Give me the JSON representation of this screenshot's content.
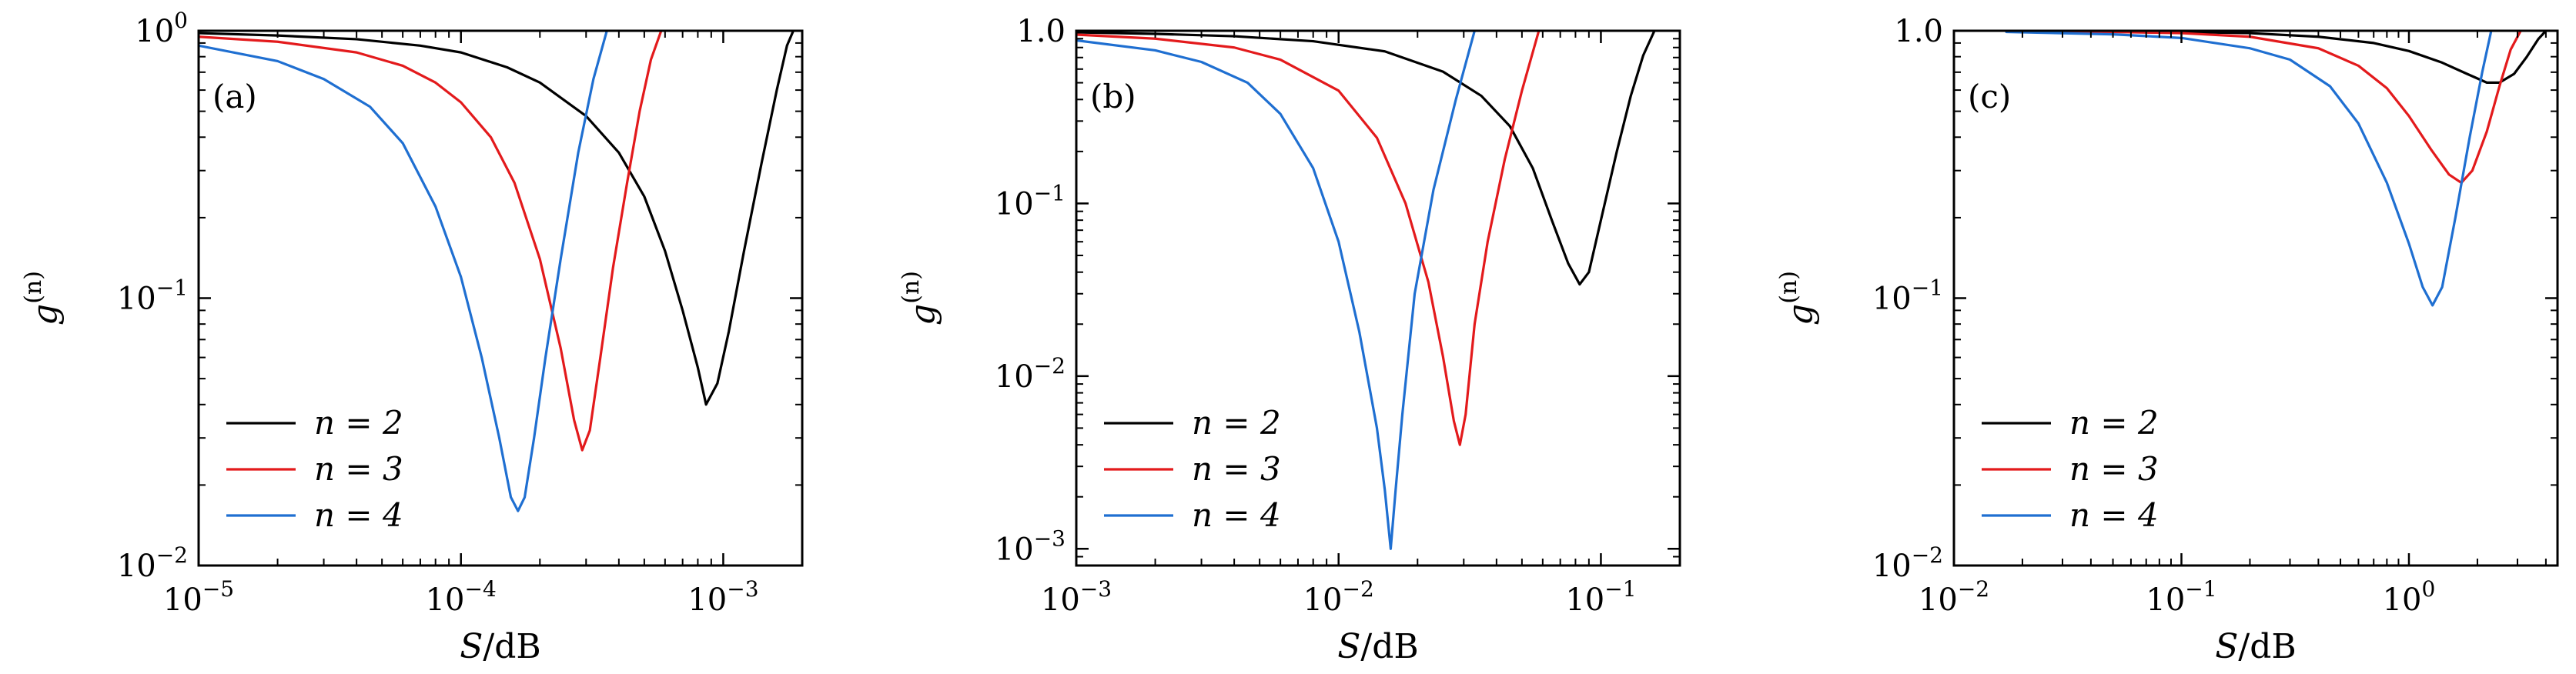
{
  "chart_data": [
    {
      "type": "line",
      "panel_label": "(a)",
      "xlabel": "S/dB",
      "ylabel": "g^(n)",
      "xscale": "log",
      "yscale": "log",
      "xlim": [
        1e-05,
        0.002
      ],
      "ylim": [
        0.01,
        1
      ],
      "xticks": [
        {
          "value": 1e-05,
          "mantissa": "10",
          "exp": "−5"
        },
        {
          "value": 0.0001,
          "mantissa": "10",
          "exp": "−4"
        },
        {
          "value": 0.001,
          "mantissa": "10",
          "exp": "−3"
        }
      ],
      "yticks": [
        {
          "value": 0.01,
          "mantissa": "10",
          "exp": "−2"
        },
        {
          "value": 0.1,
          "mantissa": "10",
          "exp": "−1"
        },
        {
          "value": 1,
          "mantissa": "10",
          "exp": "0"
        }
      ],
      "grid": false,
      "legend_position": "lower-left",
      "series": [
        {
          "name": "n = 2",
          "color": "#000000",
          "x": [
            1e-05,
            2e-05,
            4e-05,
            7e-05,
            0.0001,
            0.00015,
            0.0002,
            0.0003,
            0.0004,
            0.0005,
            0.0006,
            0.0007,
            0.0008,
            0.00086,
            0.00095,
            0.00105,
            0.0012,
            0.0014,
            0.0016,
            0.00175,
            0.00185
          ],
          "y": [
            0.98,
            0.96,
            0.93,
            0.88,
            0.83,
            0.73,
            0.64,
            0.48,
            0.35,
            0.24,
            0.15,
            0.09,
            0.055,
            0.04,
            0.048,
            0.075,
            0.15,
            0.32,
            0.6,
            0.88,
            1.0
          ]
        },
        {
          "name": "n = 3",
          "color": "#e31a1c",
          "x": [
            1e-05,
            2e-05,
            4e-05,
            6e-05,
            8e-05,
            0.0001,
            0.00013,
            0.00016,
            0.0002,
            0.00024,
            0.00027,
            0.00029,
            0.00031,
            0.00034,
            0.00038,
            0.00043,
            0.00048,
            0.00053,
            0.00058
          ],
          "y": [
            0.95,
            0.91,
            0.83,
            0.74,
            0.64,
            0.54,
            0.4,
            0.27,
            0.14,
            0.065,
            0.035,
            0.027,
            0.032,
            0.06,
            0.13,
            0.27,
            0.5,
            0.78,
            1.0
          ]
        },
        {
          "name": "n = 4",
          "color": "#1f6fd1",
          "x": [
            1e-05,
            2e-05,
            3e-05,
            4.5e-05,
            6e-05,
            8e-05,
            0.0001,
            0.00012,
            0.00014,
            0.000155,
            0.000165,
            0.000175,
            0.00019,
            0.00021,
            0.00024,
            0.00028,
            0.00032,
            0.00036
          ],
          "y": [
            0.88,
            0.77,
            0.66,
            0.52,
            0.38,
            0.22,
            0.12,
            0.06,
            0.03,
            0.018,
            0.016,
            0.018,
            0.03,
            0.06,
            0.14,
            0.35,
            0.66,
            1.0
          ]
        }
      ]
    },
    {
      "type": "line",
      "panel_label": "(b)",
      "xlabel": "S/dB",
      "ylabel": "g^(n)",
      "xscale": "log",
      "yscale": "log",
      "xlim": [
        0.001,
        0.2
      ],
      "ylim": [
        0.0008,
        1
      ],
      "xticks": [
        {
          "value": 0.001,
          "mantissa": "10",
          "exp": "−3"
        },
        {
          "value": 0.01,
          "mantissa": "10",
          "exp": "−2"
        },
        {
          "value": 0.1,
          "mantissa": "10",
          "exp": "−1"
        }
      ],
      "yticks": [
        {
          "value": 0.001,
          "mantissa": "10",
          "exp": "−3"
        },
        {
          "value": 0.01,
          "mantissa": "10",
          "exp": "−2"
        },
        {
          "value": 0.1,
          "mantissa": "10",
          "exp": "−1"
        },
        {
          "value": 1,
          "mantissa": "1.0",
          "exp": ""
        }
      ],
      "grid": false,
      "legend_position": "lower-left",
      "series": [
        {
          "name": "n = 2",
          "color": "#000000",
          "x": [
            0.001,
            0.002,
            0.004,
            0.008,
            0.015,
            0.025,
            0.035,
            0.045,
            0.055,
            0.065,
            0.075,
            0.083,
            0.09,
            0.1,
            0.115,
            0.13,
            0.145,
            0.16
          ],
          "y": [
            0.98,
            0.96,
            0.93,
            0.87,
            0.76,
            0.58,
            0.42,
            0.28,
            0.16,
            0.08,
            0.045,
            0.034,
            0.04,
            0.08,
            0.2,
            0.42,
            0.72,
            1.0
          ]
        },
        {
          "name": "n = 3",
          "color": "#e31a1c",
          "x": [
            0.001,
            0.002,
            0.004,
            0.006,
            0.01,
            0.014,
            0.018,
            0.022,
            0.025,
            0.0275,
            0.029,
            0.0305,
            0.033,
            0.037,
            0.043,
            0.05,
            0.058
          ],
          "y": [
            0.95,
            0.9,
            0.8,
            0.68,
            0.45,
            0.24,
            0.1,
            0.035,
            0.013,
            0.0055,
            0.004,
            0.006,
            0.02,
            0.06,
            0.18,
            0.45,
            1.0
          ]
        },
        {
          "name": "n = 4",
          "color": "#1f6fd1",
          "x": [
            0.001,
            0.002,
            0.003,
            0.0045,
            0.006,
            0.008,
            0.01,
            0.012,
            0.014,
            0.015,
            0.0158,
            0.0165,
            0.0175,
            0.0195,
            0.023,
            0.028,
            0.033
          ],
          "y": [
            0.88,
            0.77,
            0.66,
            0.5,
            0.33,
            0.16,
            0.06,
            0.018,
            0.005,
            0.0022,
            0.001,
            0.0022,
            0.006,
            0.03,
            0.12,
            0.4,
            1.0
          ]
        }
      ]
    },
    {
      "type": "line",
      "panel_label": "(c)",
      "xlabel": "S/dB",
      "ylabel": "g^(n)",
      "xscale": "log",
      "yscale": "log",
      "xlim": [
        0.01,
        4.5
      ],
      "ylim": [
        0.01,
        1
      ],
      "xticks": [
        {
          "value": 0.01,
          "mantissa": "10",
          "exp": "−2"
        },
        {
          "value": 0.1,
          "mantissa": "10",
          "exp": "−1"
        },
        {
          "value": 1,
          "mantissa": "10",
          "exp": "0"
        }
      ],
      "yticks": [
        {
          "value": 0.01,
          "mantissa": "10",
          "exp": "−2"
        },
        {
          "value": 0.1,
          "mantissa": "10",
          "exp": "−1"
        },
        {
          "value": 1,
          "mantissa": "1.0",
          "exp": ""
        }
      ],
      "grid": false,
      "legend_position": "lower-left",
      "series": [
        {
          "name": "n = 2",
          "color": "#000000",
          "x": [
            0.017,
            0.05,
            0.1,
            0.2,
            0.4,
            0.7,
            1.0,
            1.4,
            1.8,
            2.2,
            2.5,
            2.9,
            3.3,
            3.7,
            4.0
          ],
          "y": [
            1.0,
            0.995,
            0.99,
            0.98,
            0.95,
            0.9,
            0.84,
            0.76,
            0.69,
            0.64,
            0.64,
            0.69,
            0.8,
            0.93,
            1.0
          ]
        },
        {
          "name": "n = 3",
          "color": "#e31a1c",
          "x": [
            0.017,
            0.05,
            0.1,
            0.2,
            0.4,
            0.6,
            0.8,
            1.0,
            1.25,
            1.5,
            1.7,
            1.9,
            2.2,
            2.5,
            2.8,
            3.1
          ],
          "y": [
            1.0,
            0.99,
            0.98,
            0.95,
            0.86,
            0.74,
            0.61,
            0.48,
            0.36,
            0.29,
            0.27,
            0.3,
            0.42,
            0.62,
            0.85,
            1.0
          ]
        },
        {
          "name": "n = 4",
          "color": "#1f6fd1",
          "x": [
            0.017,
            0.05,
            0.1,
            0.2,
            0.3,
            0.45,
            0.6,
            0.8,
            1.0,
            1.15,
            1.27,
            1.4,
            1.6,
            1.85,
            2.1,
            2.3
          ],
          "y": [
            0.99,
            0.97,
            0.94,
            0.86,
            0.78,
            0.62,
            0.45,
            0.27,
            0.16,
            0.11,
            0.094,
            0.11,
            0.2,
            0.4,
            0.7,
            1.0
          ]
        }
      ]
    }
  ]
}
